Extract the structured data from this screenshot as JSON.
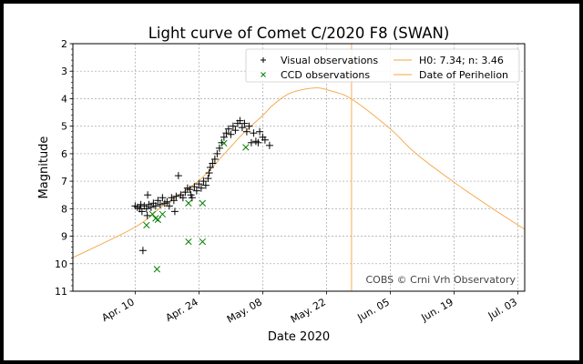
{
  "chart_data": {
    "type": "scatter",
    "title": "Light curve of Comet C/2020 F8 (SWAN)",
    "xlabel": "Date 2020",
    "ylabel": "Magnitude",
    "xlim": [
      "2020-03-27T08:00",
      "2020-07-04T12:00"
    ],
    "ylim": [
      11,
      2
    ],
    "y_inverted": true,
    "grid": true,
    "yticks": [
      2,
      3,
      4,
      5,
      6,
      7,
      8,
      9,
      10,
      11
    ],
    "xticks": [
      {
        "date": "2020-04-10",
        "label": "Apr. 10"
      },
      {
        "date": "2020-04-24",
        "label": "Apr. 24"
      },
      {
        "date": "2020-05-08",
        "label": "May. 08"
      },
      {
        "date": "2020-05-22",
        "label": "May. 22"
      },
      {
        "date": "2020-06-05",
        "label": "Jun. 05"
      },
      {
        "date": "2020-06-19",
        "label": "Jun. 19"
      },
      {
        "date": "2020-07-03",
        "label": "Jul. 03"
      }
    ],
    "legend": {
      "placement": "top-right",
      "entries": [
        {
          "label": "Visual observations",
          "marker": "+",
          "color": "#000000"
        },
        {
          "label": "CCD observations",
          "marker": "x",
          "color": "#008000"
        },
        {
          "label": "H0: 7.34; n: 3.46",
          "marker": "line",
          "color": "#f5a442"
        },
        {
          "label": "Date of Perihelion",
          "marker": "line",
          "color": "#f5a442"
        }
      ]
    },
    "annotation": "COBS © Crni Vrh Observatory",
    "series": [
      {
        "name": "Visual observations",
        "marker": "+",
        "color": "#000000",
        "points": [
          [
            "2020-04-10T00:00",
            7.9
          ],
          [
            "2020-04-10T12:00",
            7.95
          ],
          [
            "2020-04-11T00:00",
            8.0
          ],
          [
            "2020-04-11T06:00",
            7.85
          ],
          [
            "2020-04-11T17:00",
            9.52
          ],
          [
            "2020-04-11T12:00",
            8.1
          ],
          [
            "2020-04-12T00:00",
            7.9
          ],
          [
            "2020-04-12T12:00",
            8.0
          ],
          [
            "2020-04-12T18:00",
            7.5
          ],
          [
            "2020-04-12T16:00",
            8.25
          ],
          [
            "2020-04-13T00:00",
            7.85
          ],
          [
            "2020-04-13T12:00",
            7.95
          ],
          [
            "2020-04-14T00:00",
            7.8
          ],
          [
            "2020-04-14T12:00",
            7.9
          ],
          [
            "2020-04-15T00:00",
            7.7
          ],
          [
            "2020-04-15T12:00",
            7.85
          ],
          [
            "2020-04-16T00:00",
            7.6
          ],
          [
            "2020-04-16T12:00",
            7.8
          ],
          [
            "2020-04-17T00:00",
            7.75
          ],
          [
            "2020-04-17T12:00",
            7.9
          ],
          [
            "2020-04-18T00:00",
            7.6
          ],
          [
            "2020-04-18T12:00",
            7.7
          ],
          [
            "2020-04-18T17:00",
            8.1
          ],
          [
            "2020-04-19T12:00",
            6.8
          ],
          [
            "2020-04-19T00:00",
            7.55
          ],
          [
            "2020-04-20T00:00",
            7.5
          ],
          [
            "2020-04-20T12:00",
            7.6
          ],
          [
            "2020-04-21T00:00",
            7.4
          ],
          [
            "2020-04-21T12:00",
            7.25
          ],
          [
            "2020-04-22T00:00",
            7.3
          ],
          [
            "2020-04-22T06:00",
            7.5
          ],
          [
            "2020-04-22T12:00",
            7.6
          ],
          [
            "2020-04-23T00:00",
            7.2
          ],
          [
            "2020-04-23T12:00",
            7.35
          ],
          [
            "2020-04-24T00:00",
            7.1
          ],
          [
            "2020-04-24T12:00",
            7.25
          ],
          [
            "2020-04-25T00:00",
            7.0
          ],
          [
            "2020-04-25T12:00",
            7.15
          ],
          [
            "2020-04-26T00:00",
            6.9
          ],
          [
            "2020-04-26T06:00",
            6.7
          ],
          [
            "2020-04-26T12:00",
            6.5
          ],
          [
            "2020-04-27T00:00",
            6.35
          ],
          [
            "2020-04-27T12:00",
            6.2
          ],
          [
            "2020-04-28T00:00",
            6.0
          ],
          [
            "2020-04-28T12:00",
            5.8
          ],
          [
            "2020-04-29T00:00",
            5.6
          ],
          [
            "2020-04-29T12:00",
            5.4
          ],
          [
            "2020-04-30T00:00",
            5.25
          ],
          [
            "2020-04-30T12:00",
            5.1
          ],
          [
            "2020-05-01T00:00",
            5.3
          ],
          [
            "2020-05-01T12:00",
            5.0
          ],
          [
            "2020-05-02T00:00",
            5.15
          ],
          [
            "2020-05-02T12:00",
            4.9
          ],
          [
            "2020-05-03T00:00",
            4.8
          ],
          [
            "2020-05-03T12:00",
            5.05
          ],
          [
            "2020-05-04T00:00",
            4.9
          ],
          [
            "2020-05-04T12:00",
            5.2
          ],
          [
            "2020-05-05T00:00",
            5.0
          ],
          [
            "2020-05-05T12:00",
            5.6
          ],
          [
            "2020-05-06T00:00",
            5.25
          ],
          [
            "2020-05-06T12:00",
            5.55
          ],
          [
            "2020-05-07T00:00",
            5.6
          ],
          [
            "2020-05-07T08:00",
            5.2
          ],
          [
            "2020-05-08T00:00",
            5.4
          ],
          [
            "2020-05-08T12:00",
            5.5
          ],
          [
            "2020-05-09T12:00",
            5.7
          ]
        ]
      },
      {
        "name": "CCD observations",
        "marker": "x",
        "color": "#008000",
        "points": [
          [
            "2020-04-12T12:00",
            8.6
          ],
          [
            "2020-04-13T19:00",
            8.2
          ],
          [
            "2020-04-14T12:00",
            8.35
          ],
          [
            "2020-04-15T00:00",
            8.4
          ],
          [
            "2020-04-14T19:00",
            10.2
          ],
          [
            "2020-04-16T00:00",
            8.2
          ],
          [
            "2020-04-21T17:00",
            7.8
          ],
          [
            "2020-04-24T19:00",
            7.8
          ],
          [
            "2020-04-21T17:00",
            9.2
          ],
          [
            "2020-04-24T19:00",
            9.2
          ],
          [
            "2020-04-29T12:00",
            5.62
          ],
          [
            "2020-05-04T07:00",
            5.77
          ]
        ]
      },
      {
        "name": "H0: 7.34; n: 3.46",
        "type": "line",
        "color": "#f5a442",
        "points": [
          [
            "2020-03-27T08:00",
            9.78
          ],
          [
            "2020-04-10T00:00",
            8.67
          ],
          [
            "2020-04-16T08:00",
            7.86
          ],
          [
            "2020-04-24T00:00",
            6.98
          ],
          [
            "2020-04-29T16:00",
            5.99
          ],
          [
            "2020-05-03T16:00",
            5.27
          ],
          [
            "2020-05-08T00:00",
            4.61
          ],
          [
            "2020-05-10T08:00",
            4.22
          ],
          [
            "2020-05-14T00:00",
            3.8
          ],
          [
            "2020-05-19T08:00",
            3.61
          ],
          [
            "2020-05-23T00:00",
            3.72
          ],
          [
            "2020-05-27T16:00",
            4.03
          ],
          [
            "2020-06-05T00:00",
            5.1
          ],
          [
            "2020-06-10T16:00",
            6.0
          ],
          [
            "2020-06-19T00:00",
            7.04
          ],
          [
            "2020-06-27T12:00",
            8.0
          ],
          [
            "2020-07-04T12:00",
            8.75
          ]
        ]
      }
    ],
    "perihelion_date": "2020-05-27T12:00"
  }
}
